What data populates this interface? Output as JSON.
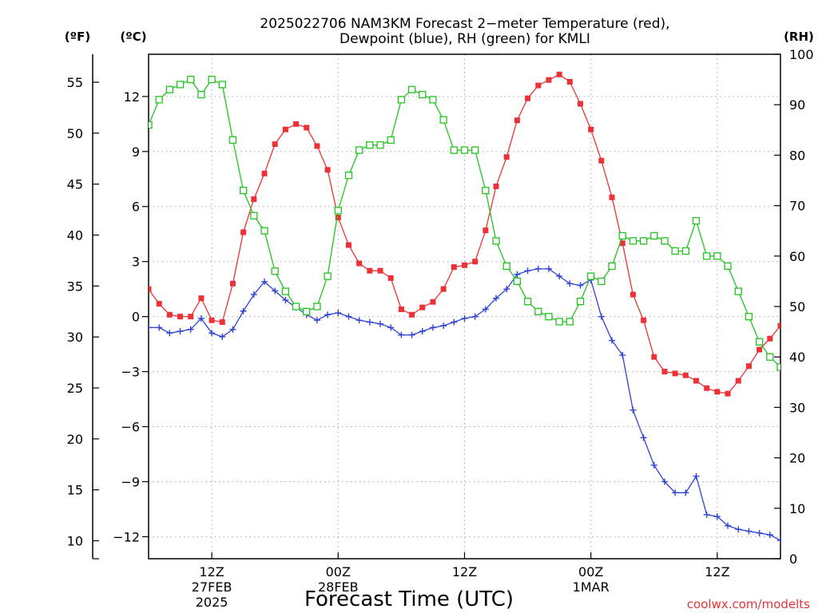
{
  "chart_data": {
    "type": "line",
    "title_lines": [
      "2025022706 NAM3KM Forecast 2−meter Temperature (red),",
      "Dewpoint (blue), RH (green) for KMLI"
    ],
    "xlabel": "Forecast Time (UTC)",
    "credit": "coolwx.com/modelts",
    "units": {
      "f": "(ºF)",
      "c": "(ºC)",
      "rh": "(RH)"
    },
    "x_range_hours": [
      -6,
      54
    ],
    "x_ticks": [
      {
        "hour": 0,
        "label": "12Z",
        "sub1": "27FEB",
        "sub2": "2025"
      },
      {
        "hour": 12,
        "label": "00Z",
        "sub1": "28FEB",
        "sub2": ""
      },
      {
        "hour": 24,
        "label": "12Z",
        "sub1": "",
        "sub2": ""
      },
      {
        "hour": 36,
        "label": "00Z",
        "sub1": "1MAR",
        "sub2": ""
      },
      {
        "hour": 48,
        "label": "12Z",
        "sub1": "",
        "sub2": ""
      }
    ],
    "c_axis": {
      "range": [
        -13.2,
        14.3
      ],
      "ticks": [
        12,
        9,
        6,
        3,
        0,
        -3,
        -6,
        -9,
        -12
      ]
    },
    "f_axis": {
      "ticks": [
        55,
        50,
        45,
        40,
        35,
        30,
        25,
        20,
        15,
        10
      ]
    },
    "rh_axis": {
      "range": [
        0,
        100
      ],
      "ticks": [
        100,
        90,
        80,
        70,
        60,
        50,
        40,
        30,
        20,
        10,
        0
      ]
    },
    "grid": true,
    "series": [
      {
        "name": "Temperature (red)",
        "axis": "c",
        "color": "#ec3237",
        "marker": "filled-square",
        "start_hour": -6,
        "values": [
          1.5,
          0.7,
          0.1,
          0.0,
          0.0,
          1.0,
          -0.2,
          -0.3,
          1.8,
          4.6,
          6.4,
          7.8,
          9.4,
          10.2,
          10.5,
          10.3,
          9.3,
          8.0,
          5.4,
          3.9,
          2.9,
          2.5,
          2.5,
          2.1,
          0.4,
          0.1,
          0.5,
          0.8,
          1.5,
          2.7,
          2.8,
          3.0,
          4.7,
          7.1,
          8.7,
          10.7,
          11.9,
          12.6,
          12.9,
          13.2,
          12.8,
          11.6,
          10.2,
          8.5,
          6.5,
          4.0,
          1.2,
          -0.2,
          -2.2,
          -3.0,
          -3.1,
          -3.2,
          -3.5,
          -3.9,
          -4.1,
          -4.2,
          -3.5,
          -2.7,
          -1.8,
          -1.2,
          -0.5
        ]
      },
      {
        "name": "Dewpoint (blue)",
        "axis": "c",
        "color": "#2e43d6",
        "marker": "plus",
        "start_hour": -6,
        "values": [
          -0.6,
          -0.6,
          -0.9,
          -0.8,
          -0.7,
          -0.1,
          -0.9,
          -1.1,
          -0.7,
          0.3,
          1.2,
          1.9,
          1.4,
          0.9,
          0.5,
          0.1,
          -0.2,
          0.1,
          0.2,
          0.0,
          -0.2,
          -0.3,
          -0.4,
          -0.6,
          -1.0,
          -1.0,
          -0.8,
          -0.6,
          -0.5,
          -0.3,
          -0.1,
          0.0,
          0.4,
          1.0,
          1.5,
          2.3,
          2.5,
          2.6,
          2.6,
          2.2,
          1.8,
          1.7,
          2.0,
          0.0,
          -1.3,
          -2.1,
          -5.1,
          -6.6,
          -8.1,
          -9.0,
          -9.6,
          -9.6,
          -8.7,
          -10.8,
          -10.9,
          -11.4,
          -11.6,
          -11.7,
          -11.8,
          -11.9,
          -12.2
        ]
      },
      {
        "name": "RH (green)",
        "axis": "rh",
        "color": "#22c31e",
        "marker": "open-square",
        "start_hour": -6,
        "values": [
          86,
          91,
          93,
          94,
          95,
          92,
          95,
          94,
          83,
          73,
          68,
          65,
          57,
          53,
          50,
          49,
          50,
          56,
          69,
          76,
          81,
          82,
          82,
          83,
          91,
          93,
          92,
          91,
          87,
          81,
          81,
          81,
          73,
          63,
          58,
          55,
          51,
          49,
          48,
          47,
          47,
          51,
          56,
          55,
          58,
          64,
          63,
          63,
          64,
          63,
          61,
          61,
          67,
          60,
          60,
          58,
          53,
          48,
          43,
          40,
          38
        ]
      }
    ]
  }
}
